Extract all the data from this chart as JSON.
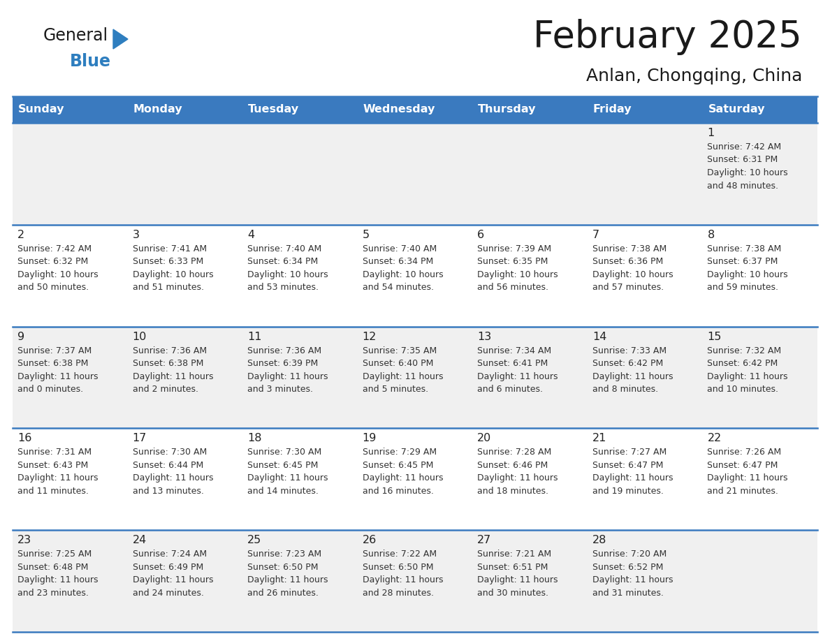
{
  "title": "February 2025",
  "subtitle": "Anlan, Chongqing, China",
  "header_bg": "#3a7abf",
  "header_text": "#ffffff",
  "row_bg_odd": "#f0f0f0",
  "row_bg_even": "#ffffff",
  "border_color": "#3a7abf",
  "days_of_week": [
    "Sunday",
    "Monday",
    "Tuesday",
    "Wednesday",
    "Thursday",
    "Friday",
    "Saturday"
  ],
  "calendar_data": [
    [
      {
        "day": "",
        "info": ""
      },
      {
        "day": "",
        "info": ""
      },
      {
        "day": "",
        "info": ""
      },
      {
        "day": "",
        "info": ""
      },
      {
        "day": "",
        "info": ""
      },
      {
        "day": "",
        "info": ""
      },
      {
        "day": "1",
        "info": "Sunrise: 7:42 AM\nSunset: 6:31 PM\nDaylight: 10 hours\nand 48 minutes."
      }
    ],
    [
      {
        "day": "2",
        "info": "Sunrise: 7:42 AM\nSunset: 6:32 PM\nDaylight: 10 hours\nand 50 minutes."
      },
      {
        "day": "3",
        "info": "Sunrise: 7:41 AM\nSunset: 6:33 PM\nDaylight: 10 hours\nand 51 minutes."
      },
      {
        "day": "4",
        "info": "Sunrise: 7:40 AM\nSunset: 6:34 PM\nDaylight: 10 hours\nand 53 minutes."
      },
      {
        "day": "5",
        "info": "Sunrise: 7:40 AM\nSunset: 6:34 PM\nDaylight: 10 hours\nand 54 minutes."
      },
      {
        "day": "6",
        "info": "Sunrise: 7:39 AM\nSunset: 6:35 PM\nDaylight: 10 hours\nand 56 minutes."
      },
      {
        "day": "7",
        "info": "Sunrise: 7:38 AM\nSunset: 6:36 PM\nDaylight: 10 hours\nand 57 minutes."
      },
      {
        "day": "8",
        "info": "Sunrise: 7:38 AM\nSunset: 6:37 PM\nDaylight: 10 hours\nand 59 minutes."
      }
    ],
    [
      {
        "day": "9",
        "info": "Sunrise: 7:37 AM\nSunset: 6:38 PM\nDaylight: 11 hours\nand 0 minutes."
      },
      {
        "day": "10",
        "info": "Sunrise: 7:36 AM\nSunset: 6:38 PM\nDaylight: 11 hours\nand 2 minutes."
      },
      {
        "day": "11",
        "info": "Sunrise: 7:36 AM\nSunset: 6:39 PM\nDaylight: 11 hours\nand 3 minutes."
      },
      {
        "day": "12",
        "info": "Sunrise: 7:35 AM\nSunset: 6:40 PM\nDaylight: 11 hours\nand 5 minutes."
      },
      {
        "day": "13",
        "info": "Sunrise: 7:34 AM\nSunset: 6:41 PM\nDaylight: 11 hours\nand 6 minutes."
      },
      {
        "day": "14",
        "info": "Sunrise: 7:33 AM\nSunset: 6:42 PM\nDaylight: 11 hours\nand 8 minutes."
      },
      {
        "day": "15",
        "info": "Sunrise: 7:32 AM\nSunset: 6:42 PM\nDaylight: 11 hours\nand 10 minutes."
      }
    ],
    [
      {
        "day": "16",
        "info": "Sunrise: 7:31 AM\nSunset: 6:43 PM\nDaylight: 11 hours\nand 11 minutes."
      },
      {
        "day": "17",
        "info": "Sunrise: 7:30 AM\nSunset: 6:44 PM\nDaylight: 11 hours\nand 13 minutes."
      },
      {
        "day": "18",
        "info": "Sunrise: 7:30 AM\nSunset: 6:45 PM\nDaylight: 11 hours\nand 14 minutes."
      },
      {
        "day": "19",
        "info": "Sunrise: 7:29 AM\nSunset: 6:45 PM\nDaylight: 11 hours\nand 16 minutes."
      },
      {
        "day": "20",
        "info": "Sunrise: 7:28 AM\nSunset: 6:46 PM\nDaylight: 11 hours\nand 18 minutes."
      },
      {
        "day": "21",
        "info": "Sunrise: 7:27 AM\nSunset: 6:47 PM\nDaylight: 11 hours\nand 19 minutes."
      },
      {
        "day": "22",
        "info": "Sunrise: 7:26 AM\nSunset: 6:47 PM\nDaylight: 11 hours\nand 21 minutes."
      }
    ],
    [
      {
        "day": "23",
        "info": "Sunrise: 7:25 AM\nSunset: 6:48 PM\nDaylight: 11 hours\nand 23 minutes."
      },
      {
        "day": "24",
        "info": "Sunrise: 7:24 AM\nSunset: 6:49 PM\nDaylight: 11 hours\nand 24 minutes."
      },
      {
        "day": "25",
        "info": "Sunrise: 7:23 AM\nSunset: 6:50 PM\nDaylight: 11 hours\nand 26 minutes."
      },
      {
        "day": "26",
        "info": "Sunrise: 7:22 AM\nSunset: 6:50 PM\nDaylight: 11 hours\nand 28 minutes."
      },
      {
        "day": "27",
        "info": "Sunrise: 7:21 AM\nSunset: 6:51 PM\nDaylight: 11 hours\nand 30 minutes."
      },
      {
        "day": "28",
        "info": "Sunrise: 7:20 AM\nSunset: 6:52 PM\nDaylight: 11 hours\nand 31 minutes."
      },
      {
        "day": "",
        "info": ""
      }
    ]
  ],
  "logo_general_color": "#1a1a1a",
  "logo_blue_color": "#2e7ebf",
  "logo_triangle_color": "#2e7ebf"
}
